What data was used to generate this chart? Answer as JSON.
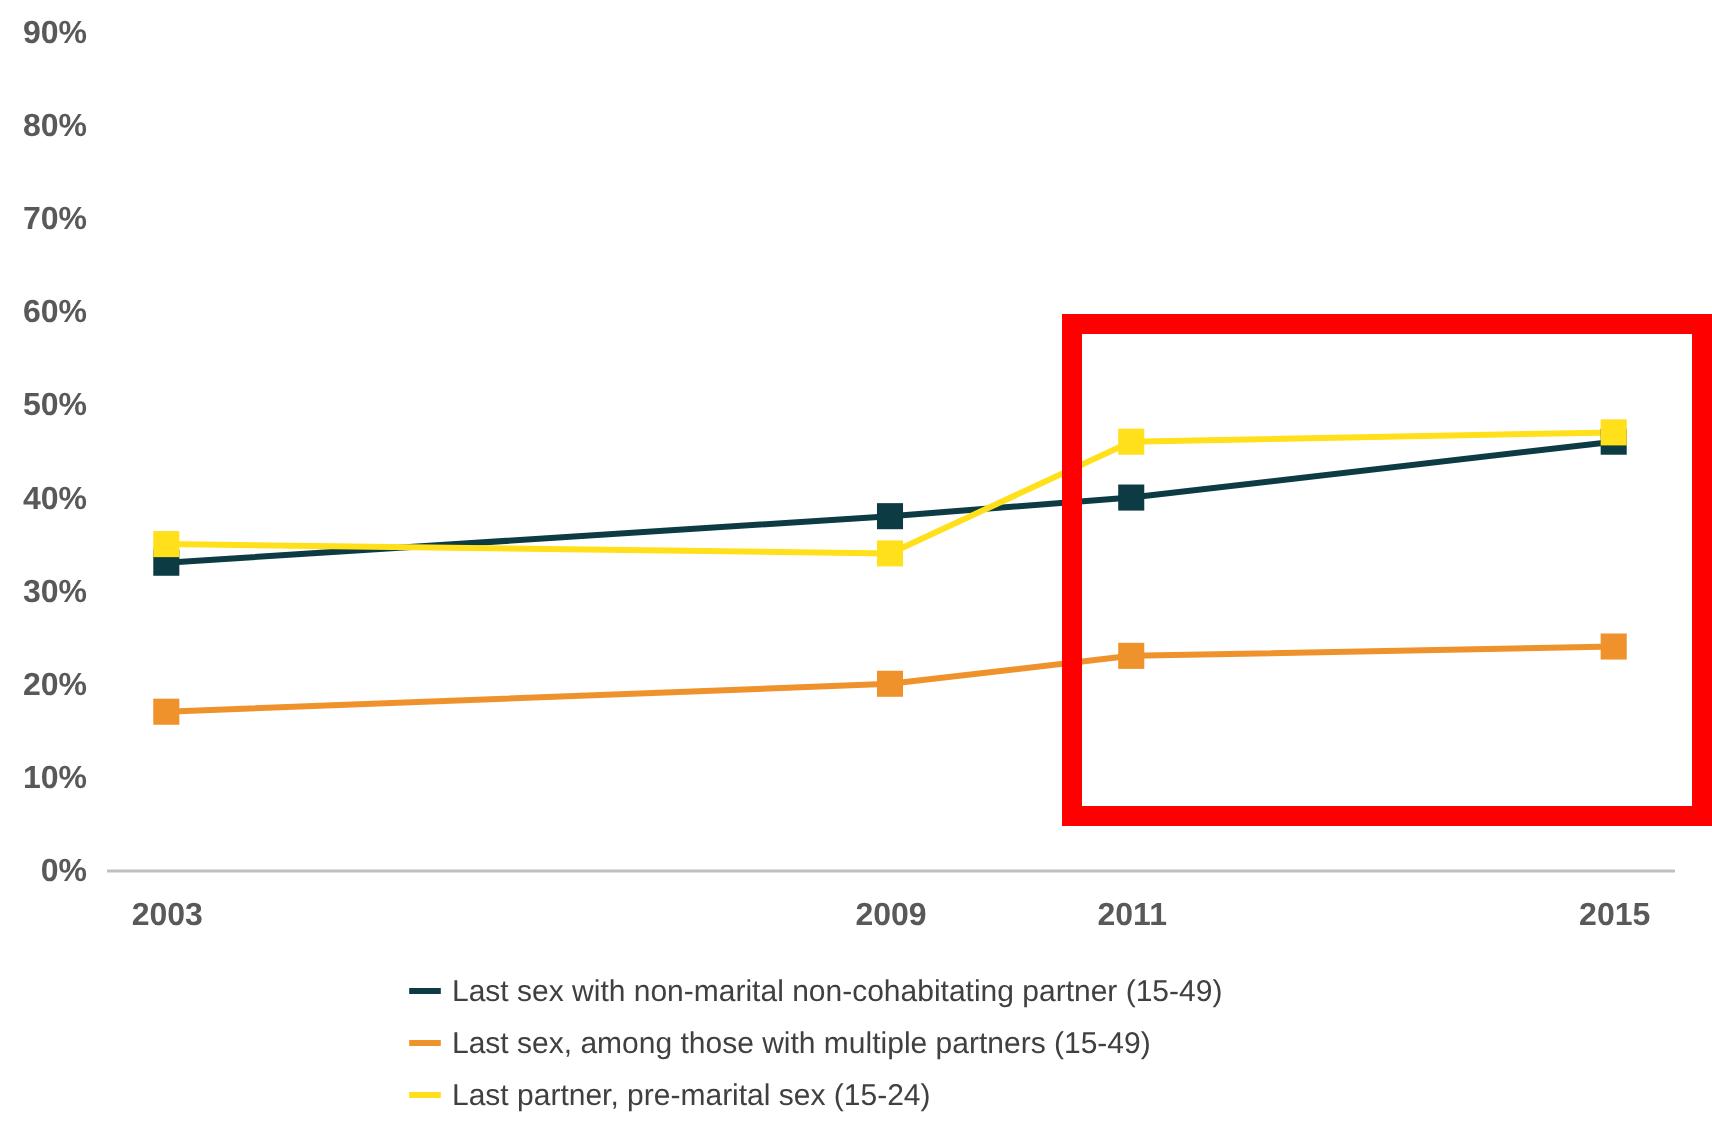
{
  "chart_data": {
    "type": "line",
    "x": [
      2003,
      2009,
      2011,
      2015
    ],
    "xlim": [
      2002.5,
      2015.5
    ],
    "xticks": [
      2003,
      2009,
      2011,
      2015
    ],
    "ylim": [
      0,
      90
    ],
    "yticks": [
      {
        "value": 0,
        "label": "0%"
      },
      {
        "value": 10,
        "label": "10%"
      },
      {
        "value": 20,
        "label": "20%"
      },
      {
        "value": 30,
        "label": "30%"
      },
      {
        "value": 40,
        "label": "40%"
      },
      {
        "value": 50,
        "label": "50%"
      },
      {
        "value": 60,
        "label": "60%"
      },
      {
        "value": 70,
        "label": "70%"
      },
      {
        "value": 80,
        "label": "80%"
      },
      {
        "value": 90,
        "label": "90%"
      }
    ],
    "series": [
      {
        "name": "Last sex with non-marital non-cohabitating partner (15-49)",
        "color": "#0d3b44",
        "values": [
          33,
          38,
          40,
          46
        ]
      },
      {
        "name": "Last sex, among those with multiple partners (15-49)",
        "color": "#f0922b",
        "values": [
          17,
          20,
          23,
          24
        ]
      },
      {
        "name": "Last partner, pre-marital sex (15-24)",
        "color": "#ffe01a",
        "values": [
          35,
          34,
          46,
          47
        ]
      }
    ],
    "grid": false,
    "legend": "bottom",
    "marker": "square",
    "line_style": "solid"
  }
}
